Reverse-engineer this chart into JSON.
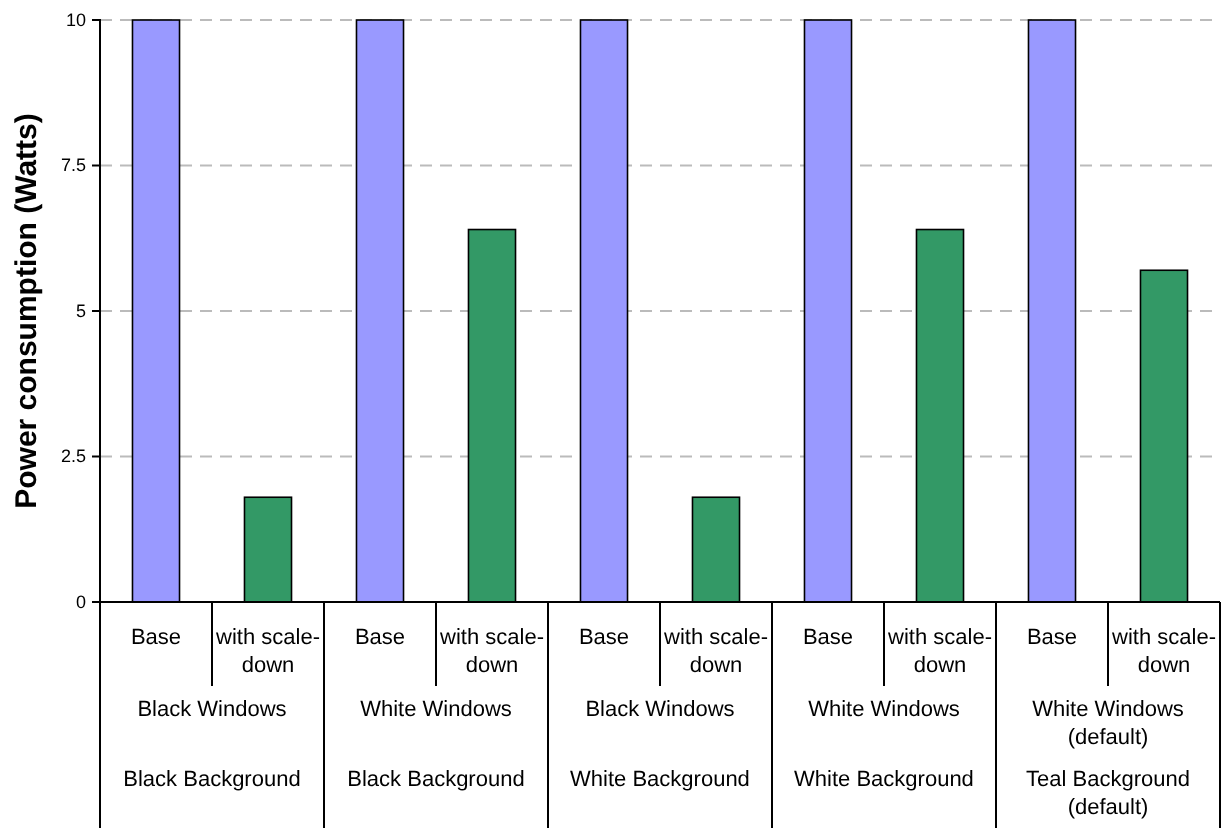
{
  "chart_data": {
    "type": "bar",
    "ylabel": "Power consumption (Watts)",
    "categories": [
      "Base",
      "with scale-down",
      "Base",
      "with scale-down",
      "Base",
      "with scale-down",
      "Base",
      "with scale-down",
      "Base",
      "with scale-down"
    ],
    "values": [
      10,
      1.8,
      10,
      6.4,
      10,
      1.8,
      10,
      6.4,
      10,
      5.7
    ],
    "colors": [
      "#9999ff",
      "#339966",
      "#9999ff",
      "#339966",
      "#9999ff",
      "#339966",
      "#9999ff",
      "#339966",
      "#9999ff",
      "#339966"
    ],
    "ylim": [
      0,
      10
    ],
    "yticks": [
      0,
      2.5,
      5,
      7.5,
      10
    ],
    "grid": "y",
    "annotations": [
      "Black Windows",
      "White Windows",
      "Black Windows",
      "White Windows",
      "White Windows (default)",
      "Black Background",
      "Black Background",
      "White Background",
      "White Background",
      "Teal Background (default)"
    ]
  }
}
